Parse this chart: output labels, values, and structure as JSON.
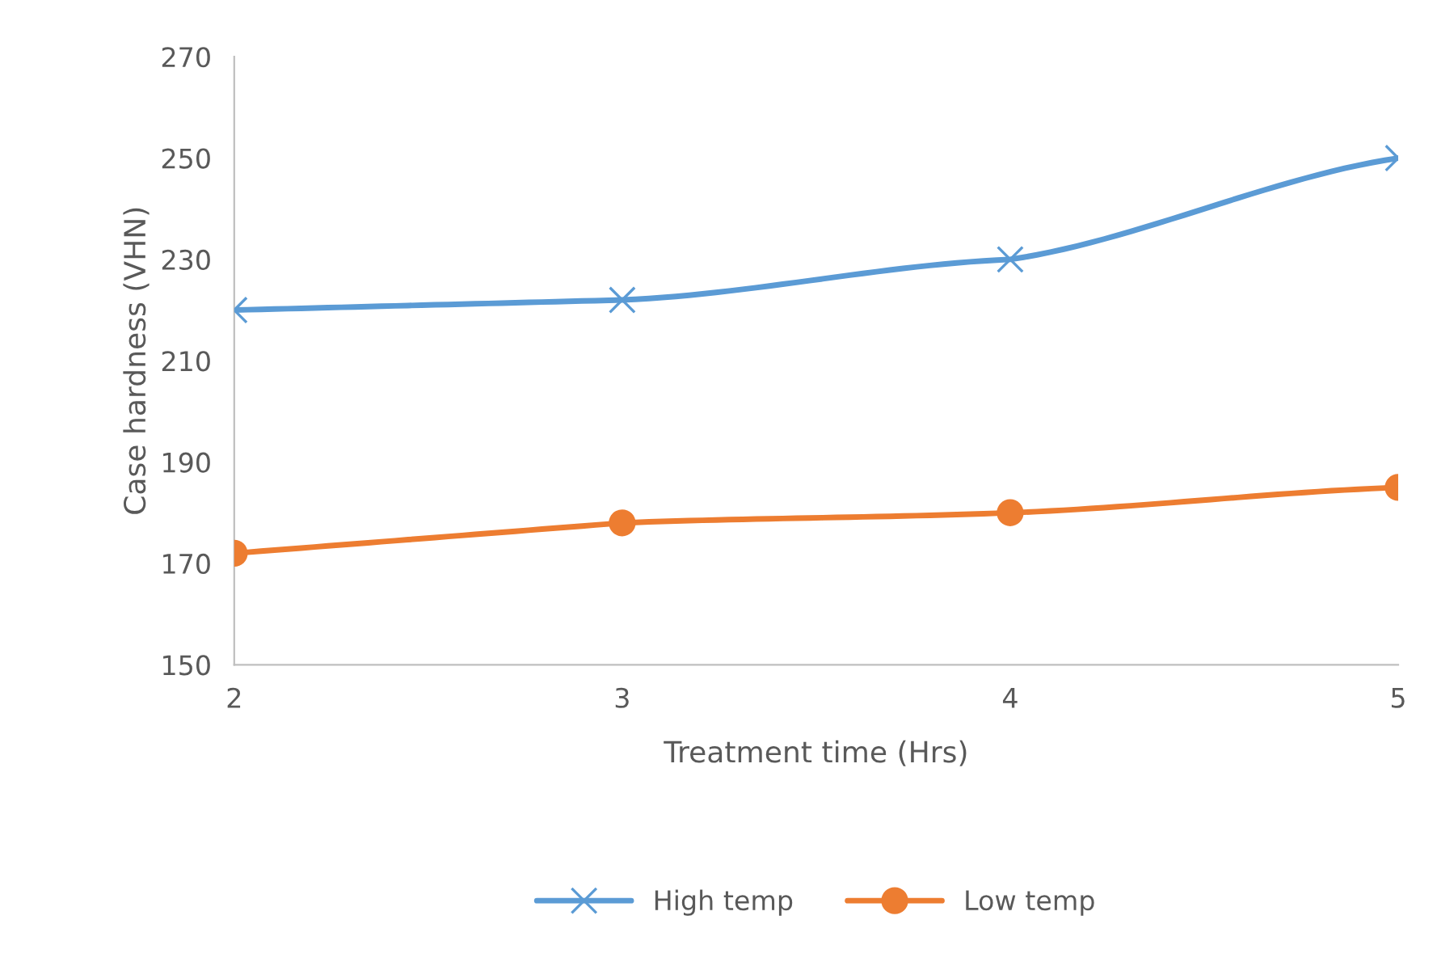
{
  "chart_data": {
    "type": "line",
    "xlabel": "Treatment time (Hrs)",
    "ylabel": "Case hardness (VHN)",
    "x": [
      2,
      3,
      4,
      5
    ],
    "xlim": [
      2,
      5
    ],
    "xticks": [
      2,
      3,
      4,
      5
    ],
    "ylim": [
      150,
      270
    ],
    "yticks": [
      150,
      170,
      190,
      210,
      230,
      250,
      270
    ],
    "series": [
      {
        "name": "High temp",
        "color": "#5b9bd5",
        "marker": "cross",
        "values": [
          220,
          222,
          230,
          250
        ]
      },
      {
        "name": "Low temp",
        "color": "#ed7d31",
        "marker": "circle",
        "values": [
          172,
          178,
          180,
          185
        ]
      }
    ],
    "legend": "bottom",
    "grid": false,
    "line_style": "solid"
  }
}
